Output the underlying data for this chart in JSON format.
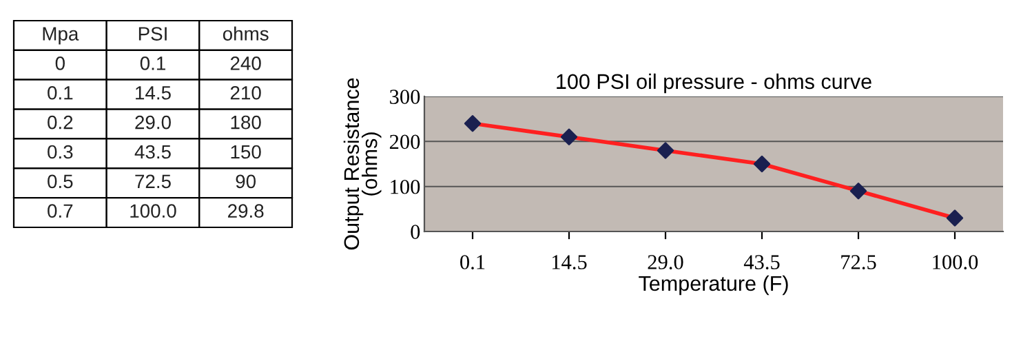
{
  "chart_data": [
    {
      "type": "other",
      "annotations": [
        "Mpa",
        "PSI",
        "ohms",
        "0",
        "0.1",
        "240",
        "0.1",
        "14.5",
        "210",
        "0.2",
        "29.0",
        "180",
        "0.3",
        "43.5",
        "150",
        "0.5",
        "72.5",
        "90",
        "0.7",
        "100.0",
        "29.8"
      ]
    },
    {
      "type": "line",
      "title": "100 PSI oil pressure - ohms curve",
      "xlabel": "Temperature (F)",
      "ylabel": "Output Resistance\n(ohms)",
      "categories": [
        "0.1",
        "14.5",
        "29.0",
        "43.5",
        "72.5",
        "100.0"
      ],
      "series": [
        {
          "color": "#ff2020",
          "values": [
            240,
            210,
            180,
            150,
            90,
            29.8
          ]
        }
      ],
      "marker": "diamond",
      "line_style": "solid",
      "ylim": [
        0,
        300
      ],
      "yticks": [
        0,
        100,
        200,
        300
      ],
      "grid": "y"
    }
  ]
}
